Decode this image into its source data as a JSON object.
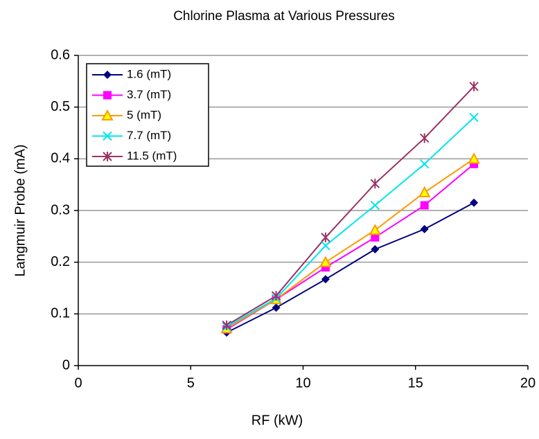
{
  "chart_data": {
    "type": "line",
    "title": "Chlorine Plasma at Various Pressures",
    "x_label": "RF (kW)",
    "y_label": "Langmuir Probe (mA)",
    "x": [
      6.6,
      8.8,
      11,
      13.2,
      15.4,
      17.6
    ],
    "series": [
      {
        "name": "1.6 (mT)",
        "color": "#000080",
        "marker": "diamond",
        "values": [
          0.064,
          0.112,
          0.167,
          0.225,
          0.264,
          0.315
        ]
      },
      {
        "name": "3.7 (mT)",
        "color": "#ff00ff",
        "marker": "square",
        "values": [
          0.07,
          0.128,
          0.19,
          0.248,
          0.31,
          0.39
        ]
      },
      {
        "name": "5 (mT)",
        "color": "#ff9900",
        "marker": "triangle",
        "values": [
          0.072,
          0.128,
          0.2,
          0.262,
          0.335,
          0.4
        ]
      },
      {
        "name": "7.7 (mT)",
        "color": "#00e5ee",
        "marker": "x",
        "values": [
          0.075,
          0.13,
          0.232,
          0.31,
          0.39,
          0.48
        ]
      },
      {
        "name": "11.5 (mT)",
        "color": "#993366",
        "marker": "star",
        "values": [
          0.078,
          0.135,
          0.248,
          0.352,
          0.44,
          0.54
        ]
      }
    ],
    "xlim": [
      0,
      20
    ],
    "xticks": [
      0,
      5,
      10,
      15,
      20
    ],
    "ylim": [
      0,
      0.6
    ],
    "yticks": [
      0,
      0.1,
      0.2,
      0.3,
      0.4,
      0.5,
      0.6
    ],
    "grid": true,
    "legend": "top-left"
  }
}
